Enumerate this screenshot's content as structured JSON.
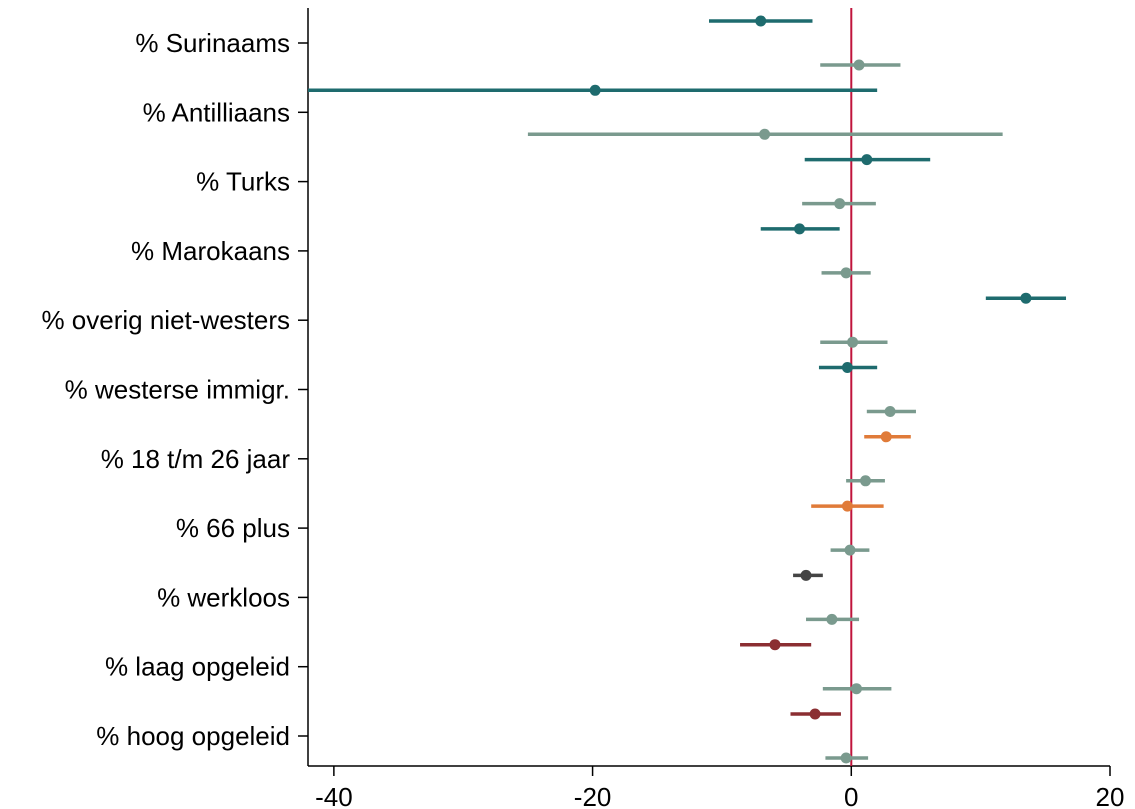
{
  "chart_data": {
    "type": "coefficient-plot",
    "title": "",
    "xlabel": "",
    "ylabel": "",
    "xlim": [
      -42,
      20
    ],
    "xticks": [
      -40,
      -20,
      0,
      20
    ],
    "grid": false,
    "reference_line": {
      "x": 0,
      "color": "#c0143c"
    },
    "categories": [
      "% Surinaams",
      "% Antilliaans",
      "% Turks",
      "% Marokaans",
      "% overig niet-westers",
      "% westerse immigr.",
      "% 18 t/m 26 jaar",
      "% 66 plus",
      "% werkloos",
      "% laag opgeleid",
      "% hoog opgeleid"
    ],
    "estimates": [
      {
        "category": 0,
        "offset": "upper",
        "est": -7.0,
        "lo": -11.0,
        "hi": -3.0,
        "color": "#1e6b6e"
      },
      {
        "category": 0,
        "offset": "lower",
        "est": 0.6,
        "lo": -2.4,
        "hi": 3.8,
        "color": "#7a9a8e"
      },
      {
        "category": 1,
        "offset": "upper",
        "est": -19.8,
        "lo": -42.0,
        "hi": 2.0,
        "color": "#1e6b6e"
      },
      {
        "category": 1,
        "offset": "lower",
        "est": -6.7,
        "lo": -25.0,
        "hi": 11.7,
        "color": "#7a9a8e"
      },
      {
        "category": 2,
        "offset": "upper",
        "est": 1.2,
        "lo": -3.6,
        "hi": 6.1,
        "color": "#1e6b6e"
      },
      {
        "category": 2,
        "offset": "lower",
        "est": -0.9,
        "lo": -3.8,
        "hi": 1.9,
        "color": "#7a9a8e"
      },
      {
        "category": 3,
        "offset": "upper",
        "est": -4.0,
        "lo": -7.0,
        "hi": -0.9,
        "color": "#1e6b6e"
      },
      {
        "category": 3,
        "offset": "lower",
        "est": -0.4,
        "lo": -2.3,
        "hi": 1.5,
        "color": "#7a9a8e"
      },
      {
        "category": 4,
        "offset": "upper",
        "est": 13.5,
        "lo": 10.4,
        "hi": 16.6,
        "color": "#1e6b6e"
      },
      {
        "category": 4,
        "offset": "lower",
        "est": 0.1,
        "lo": -2.4,
        "hi": 2.8,
        "color": "#7a9a8e"
      },
      {
        "category": 5,
        "offset": "upper",
        "est": -0.3,
        "lo": -2.5,
        "hi": 2.0,
        "color": "#1e6b6e"
      },
      {
        "category": 5,
        "offset": "lower",
        "est": 3.0,
        "lo": 1.2,
        "hi": 5.0,
        "color": "#7a9a8e"
      },
      {
        "category": 6,
        "offset": "upper",
        "est": 2.7,
        "lo": 1.0,
        "hi": 4.6,
        "color": "#e07b39"
      },
      {
        "category": 6,
        "offset": "lower",
        "est": 1.1,
        "lo": -0.4,
        "hi": 2.6,
        "color": "#7a9a8e"
      },
      {
        "category": 7,
        "offset": "upper",
        "est": -0.3,
        "lo": -3.1,
        "hi": 2.5,
        "color": "#e07b39"
      },
      {
        "category": 7,
        "offset": "lower",
        "est": -0.1,
        "lo": -1.6,
        "hi": 1.4,
        "color": "#7a9a8e"
      },
      {
        "category": 8,
        "offset": "upper",
        "est": -3.5,
        "lo": -4.5,
        "hi": -2.2,
        "color": "#444444"
      },
      {
        "category": 8,
        "offset": "lower",
        "est": -1.5,
        "lo": -3.5,
        "hi": 0.6,
        "color": "#7a9a8e"
      },
      {
        "category": 9,
        "offset": "upper",
        "est": -5.9,
        "lo": -8.6,
        "hi": -3.1,
        "color": "#8b2e32"
      },
      {
        "category": 9,
        "offset": "lower",
        "est": 0.4,
        "lo": -2.2,
        "hi": 3.1,
        "color": "#7a9a8e"
      },
      {
        "category": 10,
        "offset": "upper",
        "est": -2.8,
        "lo": -4.7,
        "hi": -0.8,
        "color": "#8b2e32"
      },
      {
        "category": 10,
        "offset": "lower",
        "est": -0.4,
        "lo": -2.0,
        "hi": 1.3,
        "color": "#7a9a8e"
      }
    ]
  }
}
